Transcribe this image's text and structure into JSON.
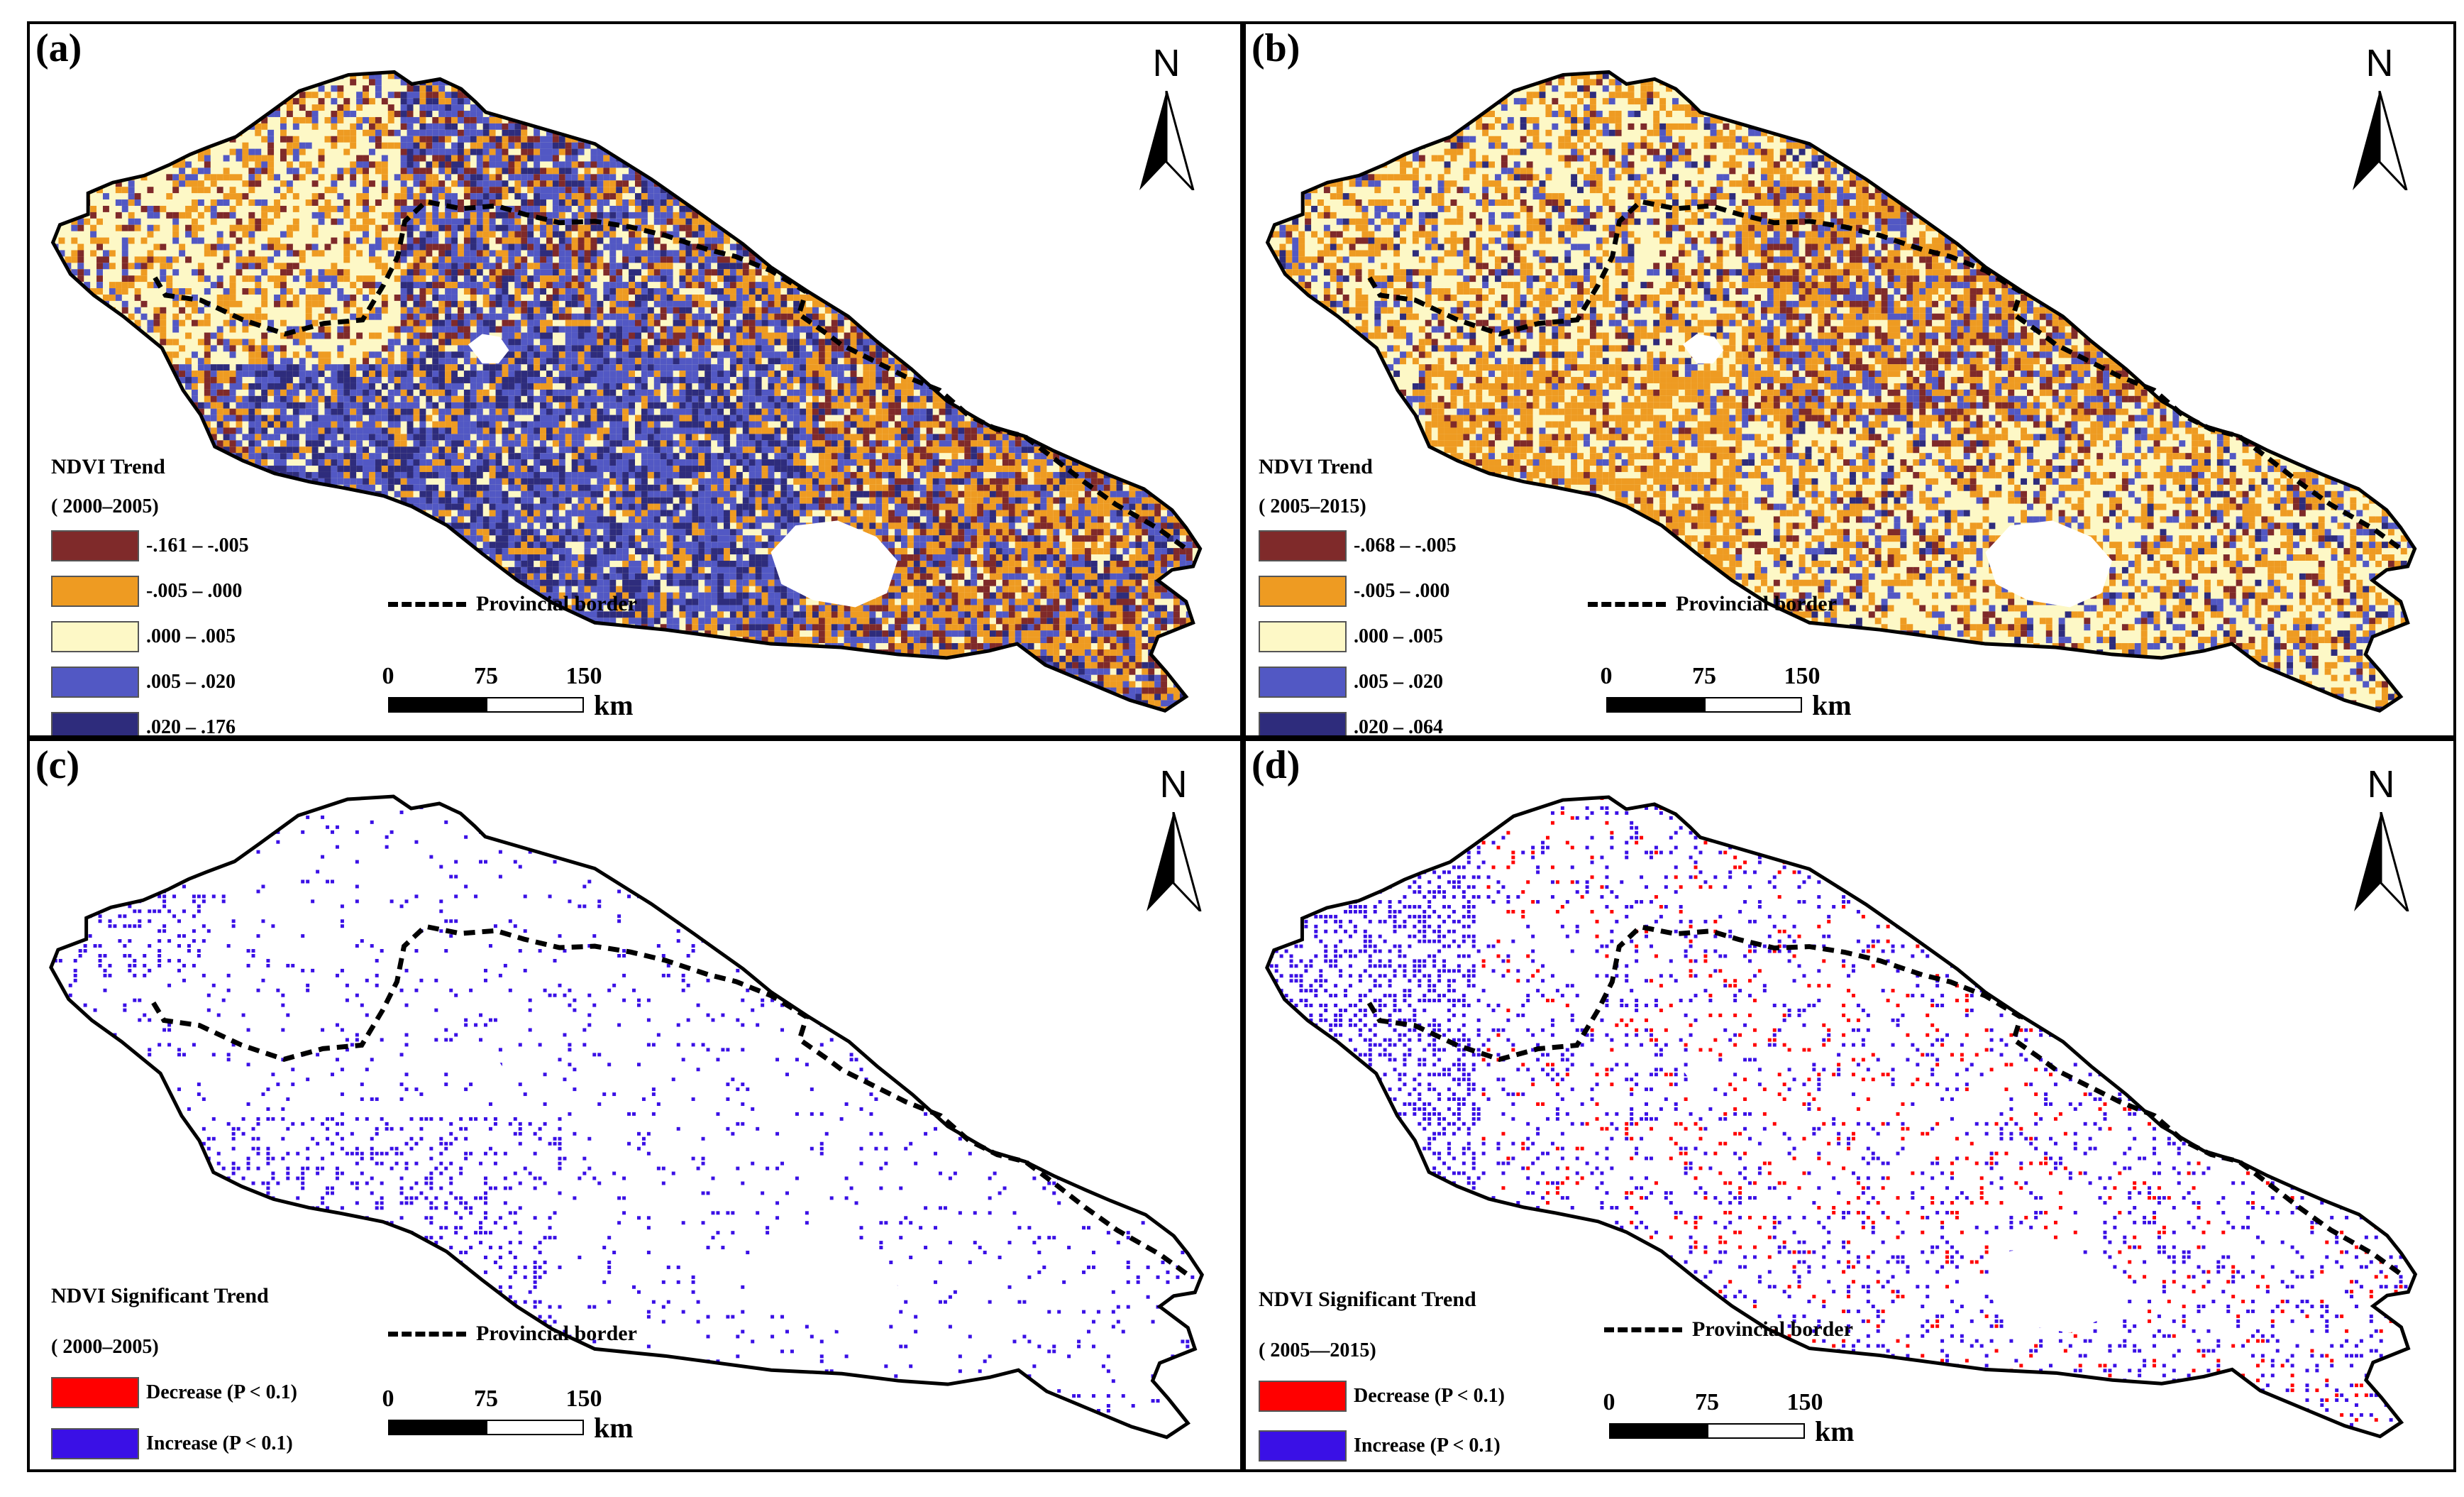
{
  "figure": {
    "panels": [
      {
        "id": "a",
        "label": "(a)",
        "map_kind": "trend",
        "north_letter": "N",
        "legend_title": "NDVI Trend",
        "legend_period": "( 2000–2005)",
        "classes": [
          {
            "label": "-.161 – -.005",
            "color": "#7f2a2a"
          },
          {
            "label": "-.005 – .000",
            "color": "#ee9b22"
          },
          {
            "label": ".000 – .005",
            "color": "#fdf8c6"
          },
          {
            "label": ".005 – .020",
            "color": "#5258c4"
          },
          {
            "label": ".020 – .176",
            "color": "#2e2c7c"
          }
        ],
        "border_label": "Provincial border",
        "scale": {
          "ticks": [
            "0",
            "75",
            "150"
          ],
          "unit": "km"
        }
      },
      {
        "id": "b",
        "label": "(b)",
        "map_kind": "trend",
        "north_letter": "N",
        "legend_title": "NDVI Trend",
        "legend_period": "( 2005–2015)",
        "classes": [
          {
            "label": "-.068 – -.005",
            "color": "#7f2a2a"
          },
          {
            "label": "-.005 – .000",
            "color": "#ee9b22"
          },
          {
            "label": ".000 – .005",
            "color": "#fdf8c6"
          },
          {
            "label": ".005 – .020",
            "color": "#5258c4"
          },
          {
            "label": ".020 – .064",
            "color": "#2e2c7c"
          }
        ],
        "border_label": "Provincial border",
        "scale": {
          "ticks": [
            "0",
            "75",
            "150"
          ],
          "unit": "km"
        }
      },
      {
        "id": "c",
        "label": "(c)",
        "map_kind": "significance",
        "north_letter": "N",
        "legend_title": "NDVI Significant Trend",
        "legend_period": "( 2000–2005)",
        "classes": [
          {
            "label": "Decrease (P < 0.1)",
            "color": "#ff0000"
          },
          {
            "label": "Increase (P < 0.1)",
            "color": "#3a10e6"
          }
        ],
        "border_label": "Provincial border",
        "scale": {
          "ticks": [
            "0",
            "75",
            "150"
          ],
          "unit": "km"
        }
      },
      {
        "id": "d",
        "label": "(d)",
        "map_kind": "significance",
        "north_letter": "N",
        "legend_title": "NDVI Significant Trend",
        "legend_period": "( 2005—2015)",
        "classes": [
          {
            "label": "Decrease (P < 0.1)",
            "color": "#ff0000"
          },
          {
            "label": "Increase (P < 0.1)",
            "color": "#3a10e6"
          }
        ],
        "border_label": "Provincial border",
        "scale": {
          "ticks": [
            "0",
            "75",
            "150"
          ],
          "unit": "km"
        }
      }
    ]
  }
}
